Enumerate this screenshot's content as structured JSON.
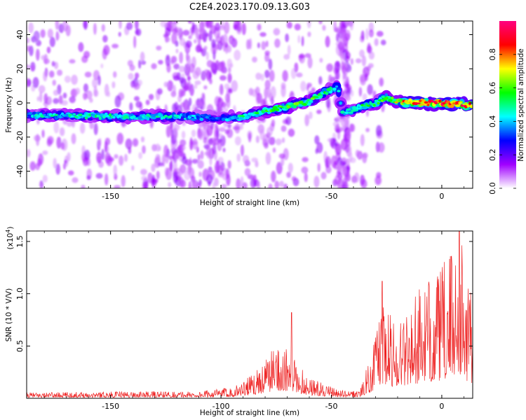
{
  "figure": {
    "title": "C2E4.2023.170.09.13.G03"
  },
  "chart_data": [
    {
      "type": "heatmap",
      "title": "C2E4.2023.170.09.13.G03",
      "xlabel": "Height of straight line (km)",
      "ylabel": "Frequency (Hz)",
      "xlim": [
        -188,
        14
      ],
      "ylim": [
        -50,
        48
      ],
      "xticks": [
        -150,
        -100,
        -50,
        0
      ],
      "yticks": [
        -40,
        -20,
        0,
        20,
        40
      ],
      "colorbar": {
        "label": "Normalized spectral amplitude",
        "range": [
          0,
          1
        ],
        "ticks": [
          0.0,
          0.2,
          0.4,
          0.6,
          0.8
        ],
        "colormap": [
          "#ffffff",
          "#a000ff",
          "#0000ff",
          "#00ffff",
          "#00ff00",
          "#ffff00",
          "#ff0000",
          "#ff0080"
        ]
      },
      "ridge": {
        "x": [
          -188,
          -150,
          -120,
          -100,
          -90,
          -80,
          -70,
          -60,
          -55,
          -50,
          -47,
          -45,
          -40,
          -35,
          -30,
          -25,
          -20,
          -15,
          -10,
          0,
          10,
          14
        ],
        "y": [
          -7,
          -8,
          -8,
          -9,
          -8,
          -5,
          -2,
          1,
          5,
          8,
          9,
          -6,
          -4,
          -2,
          0,
          3,
          1,
          0,
          0,
          0,
          -1,
          -1
        ],
        "peak_amplitude": [
          0.45,
          0.5,
          0.45,
          0.35,
          0.5,
          0.55,
          0.6,
          0.6,
          0.55,
          0.55,
          0.5,
          0.45,
          0.55,
          0.55,
          0.55,
          0.6,
          0.75,
          0.85,
          0.9,
          0.95,
          0.9,
          0.85
        ]
      }
    },
    {
      "type": "line",
      "xlabel": "Height of straight line (km)",
      "ylabel": "SNR (10 * V/V)",
      "scale_note": "(x10",
      "scale_exponent": "4",
      "scale_close": ")",
      "xlim": [
        -188,
        14
      ],
      "ylim": [
        0,
        1.6
      ],
      "xticks": [
        -150,
        -100,
        -50,
        0
      ],
      "yticks": [
        0.5,
        1.0,
        1.5
      ],
      "ytick_labels": [
        "0.5",
        "1.0",
        "1.5"
      ],
      "series": [
        {
          "color": "#ee2222",
          "envelope": {
            "x": [
              -188,
              -150,
              -110,
              -95,
              -85,
              -80,
              -75,
              -70,
              -65,
              -60,
              -55,
              -50,
              -45,
              -40,
              -37,
              -35,
              -32,
              -30,
              -28,
              -25,
              -20,
              -15,
              -10,
              -5,
              0,
              5,
              8,
              10,
              14
            ],
            "y": [
              0.05,
              0.06,
              0.06,
              0.1,
              0.22,
              0.35,
              0.5,
              0.42,
              0.3,
              0.2,
              0.14,
              0.1,
              0.07,
              0.06,
              0.1,
              0.2,
              0.4,
              0.6,
              0.85,
              0.78,
              0.7,
              0.88,
              0.95,
              1.05,
              1.15,
              1.35,
              1.55,
              1.2,
              0.95
            ]
          },
          "peaks": [
            {
              "x": -68,
              "y": 0.82
            },
            {
              "x": -27,
              "y": 1.12
            },
            {
              "x": 8,
              "y": 1.6
            }
          ]
        }
      ]
    }
  ]
}
